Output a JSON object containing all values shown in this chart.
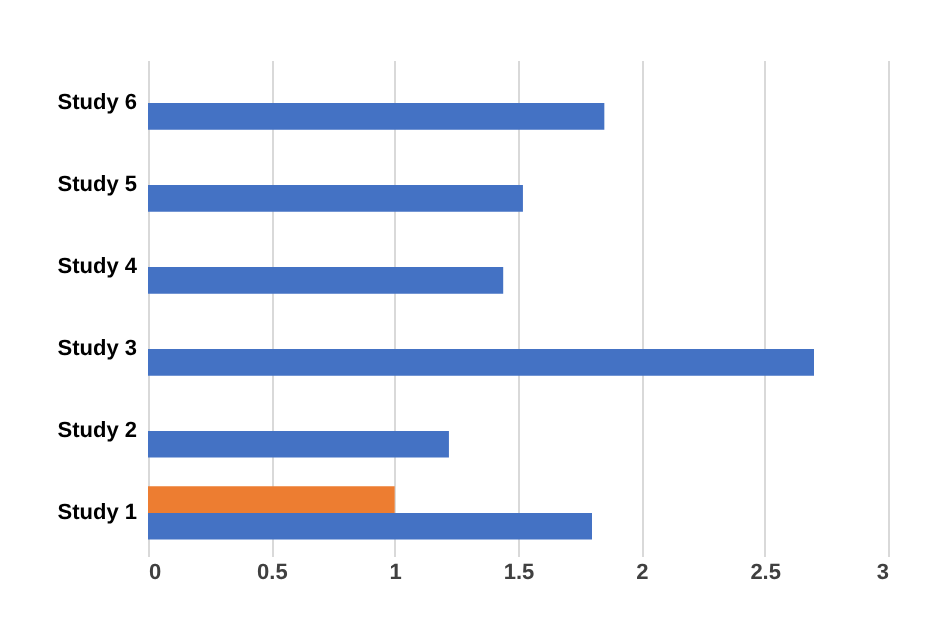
{
  "chart_data": {
    "type": "bar",
    "orientation": "horizontal",
    "categories": [
      "Study 6",
      "Study 5",
      "Study 4",
      "Study 3",
      "Study 2",
      "Study 1"
    ],
    "series": [
      {
        "color": "#ed7d31",
        "values": [
          null,
          null,
          null,
          null,
          null,
          1.0
        ]
      },
      {
        "color": "#4472c4",
        "values": [
          1.85,
          1.52,
          1.44,
          2.7,
          1.22,
          1.8
        ]
      }
    ],
    "xlim": [
      0,
      3
    ],
    "xticks": [
      0,
      0.5,
      1,
      1.5,
      2,
      2.5,
      3
    ],
    "grid": "x",
    "legend": false
  }
}
